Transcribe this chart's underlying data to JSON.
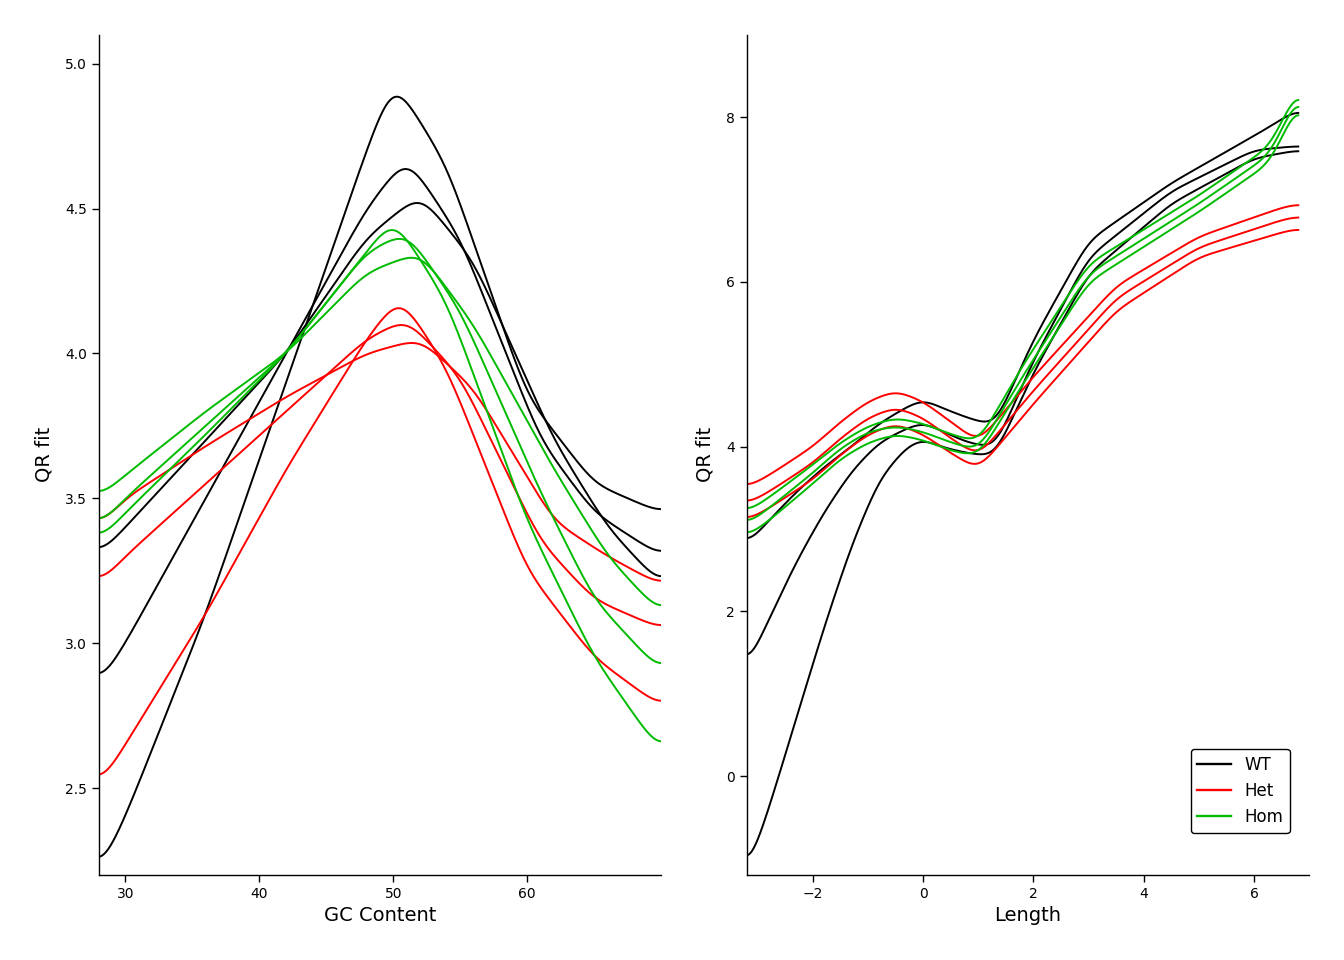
{
  "left": {
    "xlabel": "GC Content",
    "ylabel": "QR fit",
    "xlim": [
      28,
      70
    ],
    "ylim": [
      2.2,
      5.1
    ],
    "xticks": [
      30,
      40,
      50,
      60
    ],
    "yticks": [
      2.5,
      3.0,
      3.5,
      4.0,
      4.5,
      5.0
    ],
    "wt_curves": [
      [
        [
          28,
          30,
          36,
          42,
          48,
          50,
          54,
          60,
          65,
          70
        ],
        [
          2.2,
          2.4,
          3.1,
          3.9,
          4.7,
          4.95,
          4.65,
          3.85,
          3.55,
          3.45
        ]
      ],
      [
        [
          28,
          30,
          36,
          42,
          48,
          51,
          55,
          61,
          65,
          70
        ],
        [
          2.85,
          3.0,
          3.5,
          4.0,
          4.5,
          4.68,
          4.4,
          3.7,
          3.45,
          3.3
        ]
      ],
      [
        [
          28,
          30,
          36,
          42,
          48,
          52,
          56,
          62,
          66,
          70
        ],
        [
          3.3,
          3.4,
          3.7,
          4.0,
          4.4,
          4.55,
          4.32,
          3.7,
          3.4,
          3.2
        ]
      ]
    ],
    "het_curves": [
      [
        [
          28,
          30,
          36,
          42,
          48,
          50.5,
          54,
          60,
          65,
          70
        ],
        [
          2.5,
          2.65,
          3.1,
          3.6,
          4.05,
          4.2,
          3.95,
          3.25,
          2.95,
          2.78
        ]
      ],
      [
        [
          28,
          30,
          36,
          42,
          48,
          51,
          55,
          61,
          65,
          70
        ],
        [
          3.2,
          3.3,
          3.55,
          3.8,
          4.05,
          4.12,
          3.92,
          3.35,
          3.15,
          3.05
        ]
      ],
      [
        [
          28,
          30,
          36,
          42,
          48,
          52,
          56,
          62,
          66,
          70
        ],
        [
          3.4,
          3.5,
          3.68,
          3.85,
          4.0,
          4.05,
          3.88,
          3.42,
          3.3,
          3.2
        ]
      ]
    ],
    "hom_curves": [
      [
        [
          28,
          30,
          36,
          42,
          48,
          50,
          54,
          60,
          65,
          70
        ],
        [
          3.35,
          3.45,
          3.72,
          4.0,
          4.35,
          4.47,
          4.18,
          3.42,
          2.95,
          2.62
        ]
      ],
      [
        [
          28,
          30,
          36,
          42,
          48,
          51,
          55,
          61,
          65,
          70
        ],
        [
          3.4,
          3.5,
          3.75,
          4.0,
          4.35,
          4.42,
          4.15,
          3.52,
          3.15,
          2.9
        ]
      ],
      [
        [
          28,
          30,
          36,
          42,
          48,
          52,
          56,
          62,
          66,
          70
        ],
        [
          3.5,
          3.58,
          3.8,
          4.0,
          4.28,
          4.35,
          4.1,
          3.6,
          3.3,
          3.1
        ]
      ]
    ]
  },
  "right": {
    "xlabel": "Length",
    "ylabel": "QR fit",
    "xlim": [
      -3.2,
      7.0
    ],
    "ylim": [
      -1.2,
      9.0
    ],
    "xticks": [
      -2,
      0,
      2,
      4,
      6
    ],
    "yticks": [
      0,
      2,
      4,
      6,
      8
    ],
    "wt_curves": [
      [
        [
          -3.2,
          -2.8,
          -2.3,
          -1.8,
          -1.3,
          -0.8,
          -0.3,
          0.0,
          0.3,
          0.8,
          1.3,
          2.0,
          3.0,
          4.5,
          6.0,
          6.8
        ],
        [
          -1.2,
          -0.4,
          0.7,
          1.8,
          2.8,
          3.6,
          4.0,
          4.1,
          4.0,
          3.92,
          3.88,
          4.9,
          6.1,
          6.95,
          7.5,
          7.6
        ]
      ],
      [
        [
          -3.2,
          -2.8,
          -2.3,
          -1.8,
          -1.3,
          -0.8,
          -0.3,
          0.0,
          0.3,
          0.8,
          1.3,
          2.0,
          3.0,
          4.5,
          6.0,
          6.8
        ],
        [
          1.3,
          1.9,
          2.6,
          3.2,
          3.7,
          4.05,
          4.22,
          4.3,
          4.2,
          4.05,
          3.98,
          5.05,
          6.3,
          7.1,
          7.6,
          7.65
        ]
      ],
      [
        [
          -3.2,
          -2.8,
          -2.3,
          -1.8,
          -1.3,
          -0.8,
          -0.3,
          0.0,
          0.3,
          0.8,
          1.3,
          2.0,
          3.0,
          4.5,
          6.2,
          6.8
        ],
        [
          2.8,
          3.1,
          3.45,
          3.75,
          4.0,
          4.28,
          4.48,
          4.58,
          4.48,
          4.35,
          4.25,
          5.3,
          6.5,
          7.2,
          7.85,
          8.1
        ]
      ]
    ],
    "het_curves": [
      [
        [
          -3.2,
          -2.8,
          -2.0,
          -1.5,
          -1.0,
          -0.5,
          0.0,
          0.5,
          1.0,
          2.0,
          3.5,
          5.0,
          6.5,
          6.8
        ],
        [
          3.5,
          3.65,
          4.0,
          4.3,
          4.55,
          4.68,
          4.55,
          4.3,
          4.05,
          4.85,
          5.95,
          6.55,
          6.9,
          6.95
        ]
      ],
      [
        [
          -3.2,
          -2.8,
          -2.0,
          -1.5,
          -1.0,
          -0.5,
          0.0,
          0.5,
          1.0,
          2.0,
          3.5,
          5.0,
          6.5,
          6.8
        ],
        [
          3.3,
          3.45,
          3.8,
          4.1,
          4.35,
          4.48,
          4.35,
          4.1,
          3.88,
          4.68,
          5.8,
          6.42,
          6.75,
          6.8
        ]
      ],
      [
        [
          -3.2,
          -2.8,
          -2.0,
          -1.5,
          -1.0,
          -0.5,
          0.0,
          0.5,
          1.0,
          2.0,
          3.5,
          5.0,
          6.5,
          6.8
        ],
        [
          3.1,
          3.25,
          3.6,
          3.9,
          4.15,
          4.28,
          4.15,
          3.92,
          3.72,
          4.52,
          5.65,
          6.3,
          6.6,
          6.65
        ]
      ]
    ],
    "hom_curves": [
      [
        [
          -3.2,
          -2.8,
          -2.0,
          -1.5,
          -1.0,
          -0.5,
          0.0,
          0.5,
          1.0,
          1.8,
          3.0,
          5.0,
          6.3,
          6.8
        ],
        [
          2.9,
          3.1,
          3.55,
          3.85,
          4.05,
          4.15,
          4.08,
          3.95,
          3.88,
          4.75,
          6.0,
          6.85,
          7.45,
          8.2
        ]
      ],
      [
        [
          -3.2,
          -2.8,
          -2.0,
          -1.5,
          -1.0,
          -0.5,
          0.0,
          0.5,
          1.0,
          1.8,
          3.0,
          5.0,
          6.3,
          6.8
        ],
        [
          3.05,
          3.25,
          3.68,
          3.98,
          4.18,
          4.25,
          4.18,
          4.05,
          3.95,
          4.85,
          6.1,
          6.95,
          7.55,
          8.3
        ]
      ],
      [
        [
          -3.2,
          -2.8,
          -2.0,
          -1.5,
          -1.0,
          -0.5,
          0.0,
          0.5,
          1.0,
          1.8,
          3.0,
          5.0,
          6.3,
          6.8
        ],
        [
          3.2,
          3.38,
          3.78,
          4.05,
          4.25,
          4.35,
          4.28,
          4.15,
          4.05,
          4.98,
          6.22,
          7.05,
          7.65,
          8.38
        ]
      ]
    ]
  },
  "colors": {
    "wt": "#000000",
    "het": "#FF0000",
    "hom": "#00BB00"
  },
  "linewidth": 1.4
}
